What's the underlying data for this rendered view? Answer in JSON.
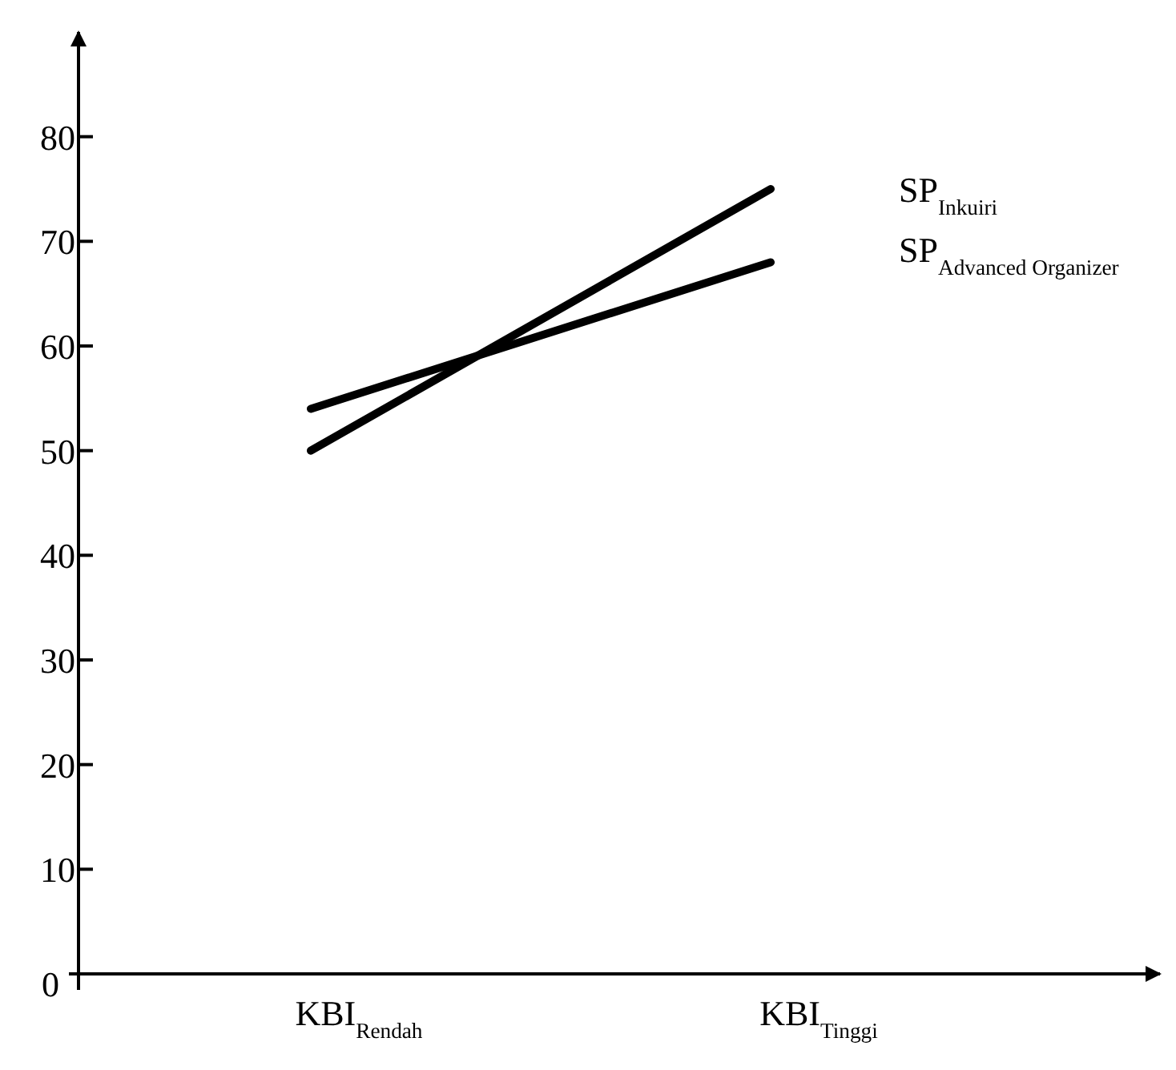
{
  "chart_data": {
    "type": "line",
    "categories": [
      "KBI$_{Rendah}$",
      "KBI$_{Tinggi}$"
    ],
    "ylim": [
      0,
      90
    ],
    "yticks": [
      0,
      10,
      20,
      30,
      40,
      50,
      60,
      70,
      80
    ],
    "grid": false,
    "marker": "none",
    "line_style": "solid",
    "series": [
      {
        "name": "SP$_{Inkuiri}$",
        "color": "#000000",
        "values": [
          50,
          75
        ]
      },
      {
        "name": "SP$_{Advanced Organizer}$",
        "color": "#000000",
        "values": [
          54,
          68
        ]
      }
    ]
  }
}
